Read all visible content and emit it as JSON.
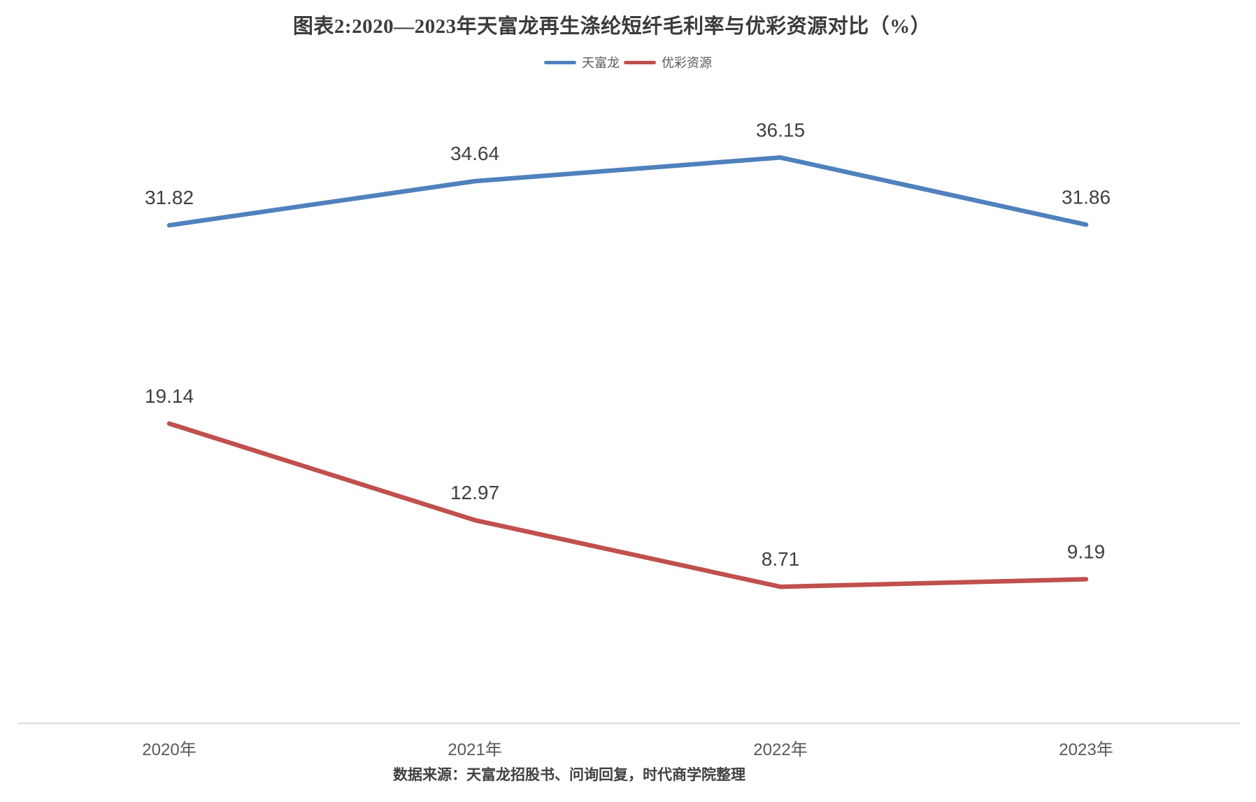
{
  "title": "图表2:2020—2023年天富龙再生涤纶短纤毛利率与优彩资源对比（%）",
  "legend": {
    "items": [
      {
        "label": "天富龙",
        "color": "#4F81BD"
      },
      {
        "label": "优彩资源",
        "color": "#C0504D"
      }
    ]
  },
  "source_note": "数据来源：天富龙招股书、问询回复，时代商学院整理",
  "colors": {
    "series_blue": "#4F81BD",
    "series_red": "#C0504D",
    "title_text": "#3B3B3B",
    "data_label_text": "#404040",
    "axis_label_text": "#595959",
    "axis_line": "#D9D9D9",
    "background": "#FFFFFF"
  },
  "chart_data": {
    "type": "line",
    "title": "图表2:2020—2023年天富龙再生涤纶短纤毛利率与优彩资源对比（%）",
    "categories": [
      "2020年",
      "2021年",
      "2022年",
      "2023年"
    ],
    "series": [
      {
        "name": "天富龙",
        "color": "#4F81BD",
        "values": [
          31.82,
          34.64,
          36.15,
          31.86
        ]
      },
      {
        "name": "优彩资源",
        "color": "#C0504D",
        "values": [
          19.14,
          12.97,
          8.71,
          9.19
        ]
      }
    ],
    "xlabel": "",
    "ylabel": "",
    "ylim": [
      0,
      40
    ],
    "grid": false,
    "y_axis_visible": false,
    "data_labels": true,
    "legend_position": "top-center",
    "source": "数据来源：天富龙招股书、问询回复，时代商学院整理"
  }
}
